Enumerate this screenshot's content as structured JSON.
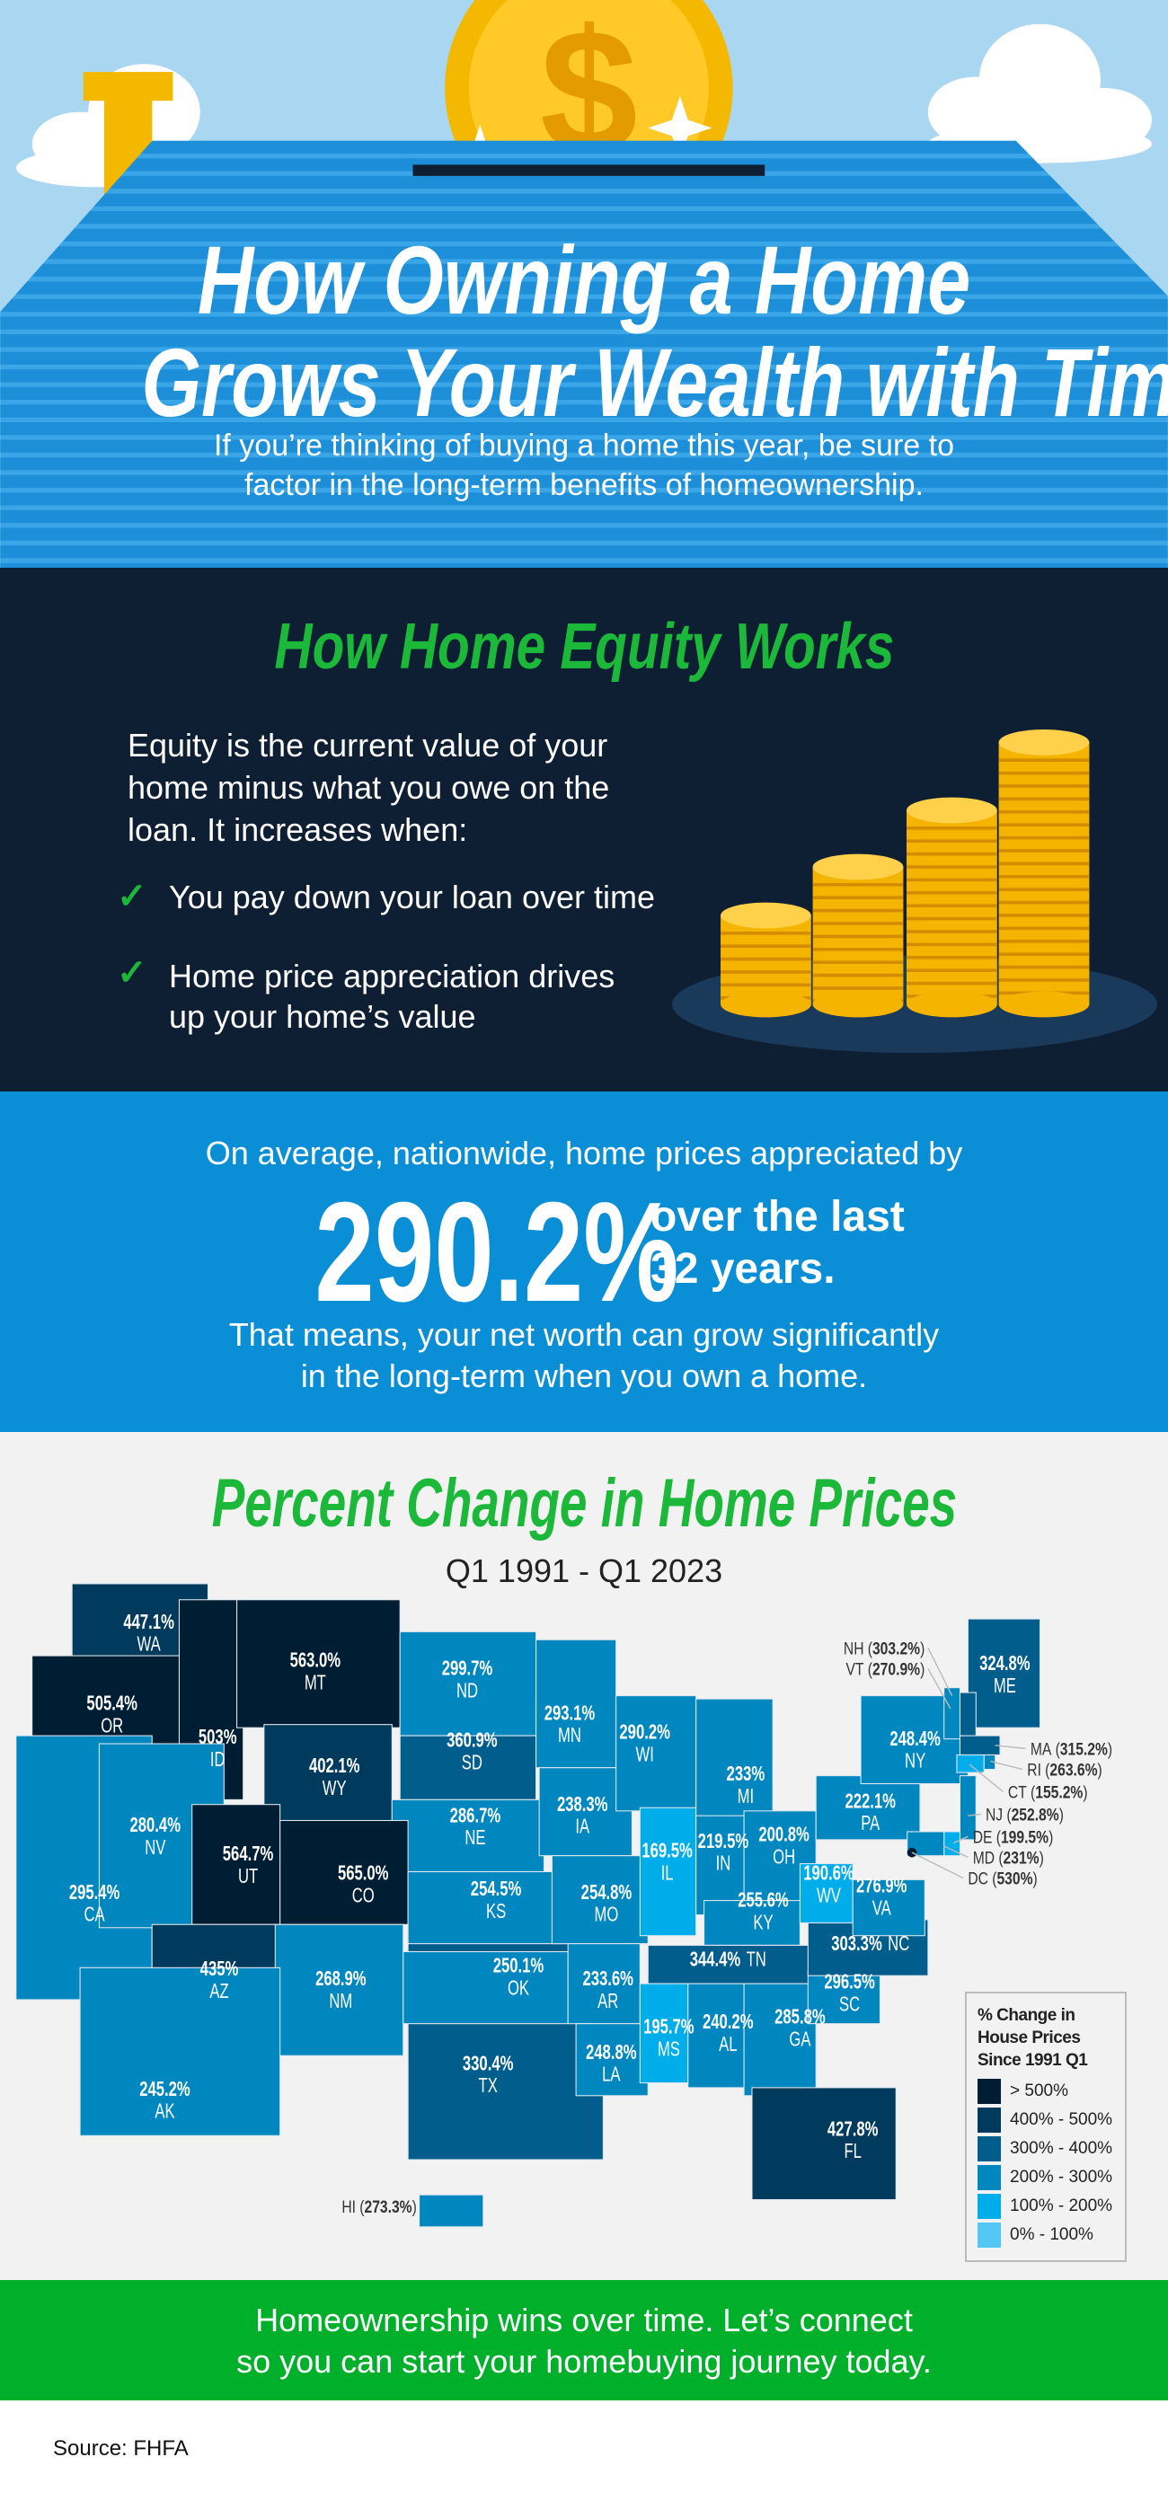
{
  "hero": {
    "title_line1": "How Owning a Home",
    "title_line2": "Grows Your Wealth with Time",
    "subtitle_line1": "If you’re thinking of buying a home this year, be sure to",
    "subtitle_line2": "factor in the long-term benefits of homeownership.",
    "coin_symbol": "$"
  },
  "equity": {
    "title": "How Home Equity Works",
    "body_lines": [
      "Equity is the current value of your",
      "home minus what you owe on the",
      "loan. It increases when:"
    ],
    "items": [
      {
        "icon": "check-icon",
        "lines": [
          "You pay down your loan over time"
        ]
      },
      {
        "icon": "check-icon",
        "lines": [
          "Home price appreciation drives",
          "up your home’s value"
        ]
      }
    ]
  },
  "stat": {
    "intro": "On average, nationwide, home prices appreciated by",
    "value": "290.2%",
    "suffix_line1": "over the last",
    "suffix_line2": "32 years.",
    "outro_line1": "That means, your net worth can grow significantly",
    "outro_line2": "in the long-term when you own a home."
  },
  "map": {
    "title": "Percent Change in Home Prices",
    "subtitle": "Q1 1991 - Q1 2023",
    "legend": {
      "title_lines": [
        "% Change in",
        "House Prices",
        "Since 1991 Q1"
      ],
      "buckets": [
        {
          "label": "> 500%",
          "color": "#001e33"
        },
        {
          "label": "400% - 500%",
          "color": "#003a5c"
        },
        {
          "label": "300% - 400%",
          "color": "#005d8c"
        },
        {
          "label": "200% - 300%",
          "color": "#0087bf"
        },
        {
          "label": "100% - 200%",
          "color": "#00adeb"
        },
        {
          "label": "0% - 100%",
          "color": "#54c7f5"
        }
      ]
    },
    "states": [
      {
        "code": "WA",
        "pct": "447.1%"
      },
      {
        "code": "OR",
        "pct": "505.4%"
      },
      {
        "code": "ID",
        "pct": "503%"
      },
      {
        "code": "MT",
        "pct": "563.0%"
      },
      {
        "code": "WY",
        "pct": "402.1%"
      },
      {
        "code": "ND",
        "pct": "299.7%"
      },
      {
        "code": "SD",
        "pct": "360.9%"
      },
      {
        "code": "NE",
        "pct": "286.7%"
      },
      {
        "code": "CA",
        "pct": "295.4%"
      },
      {
        "code": "NV",
        "pct": "280.4%"
      },
      {
        "code": "UT",
        "pct": "564.7%"
      },
      {
        "code": "CO",
        "pct": "565.0%"
      },
      {
        "code": "KS",
        "pct": "254.5%"
      },
      {
        "code": "AZ",
        "pct": "435%"
      },
      {
        "code": "NM",
        "pct": "268.9%"
      },
      {
        "code": "TX",
        "pct": "330.4%"
      },
      {
        "code": "OK",
        "pct": "250.1%"
      },
      {
        "code": "MN",
        "pct": "293.1%"
      },
      {
        "code": "IA",
        "pct": "238.3%"
      },
      {
        "code": "MO",
        "pct": "254.8%"
      },
      {
        "code": "AR",
        "pct": "233.6%"
      },
      {
        "code": "LA",
        "pct": "248.8%"
      },
      {
        "code": "WI",
        "pct": "290.2%"
      },
      {
        "code": "IL",
        "pct": "169.5%"
      },
      {
        "code": "MI",
        "pct": "233%"
      },
      {
        "code": "IN",
        "pct": "219.5%"
      },
      {
        "code": "OH",
        "pct": "200.8%"
      },
      {
        "code": "KY",
        "pct": "255.6%"
      },
      {
        "code": "TN",
        "pct": "344.4%"
      },
      {
        "code": "MS",
        "pct": "195.7%"
      },
      {
        "code": "AL",
        "pct": "240.2%"
      },
      {
        "code": "GA",
        "pct": "285.8%"
      },
      {
        "code": "SC",
        "pct": "296.5%"
      },
      {
        "code": "NC",
        "pct": "303.3%"
      },
      {
        "code": "WV",
        "pct": "190.6%"
      },
      {
        "code": "VA",
        "pct": "276.9%"
      },
      {
        "code": "PA",
        "pct": "222.1%"
      },
      {
        "code": "NY",
        "pct": "248.4%"
      },
      {
        "code": "ME",
        "pct": "324.8%"
      },
      {
        "code": "FL",
        "pct": "427.8%"
      },
      {
        "code": "AK",
        "pct": "245.2%"
      },
      {
        "code": "NH",
        "pct": "303.2%"
      },
      {
        "code": "VT",
        "pct": "270.9%"
      },
      {
        "code": "MA",
        "pct": "315.2%"
      },
      {
        "code": "RI",
        "pct": "263.6%"
      },
      {
        "code": "CT",
        "pct": "155.2%"
      },
      {
        "code": "NJ",
        "pct": "252.8%"
      },
      {
        "code": "DE",
        "pct": "199.5%"
      },
      {
        "code": "MD",
        "pct": "231%"
      },
      {
        "code": "DC",
        "pct": "530%"
      },
      {
        "code": "HI",
        "pct": "273.3%"
      }
    ]
  },
  "cta": {
    "line1": "Homeownership wins over time. Let’s connect",
    "line2": "so you can start your homebuying journey today."
  },
  "source": "Source: FHFA"
}
